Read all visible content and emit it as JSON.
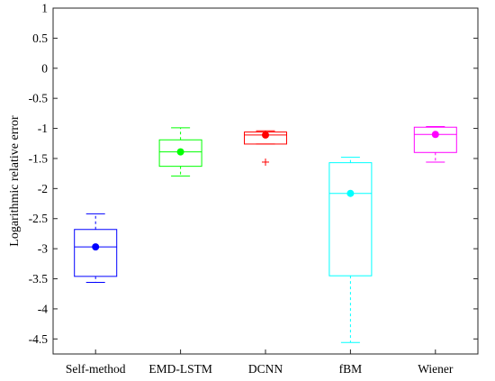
{
  "chart_data": {
    "type": "boxplot",
    "ylabel": "Logarithmic relative error",
    "xlabel": "",
    "ylim": [
      -4.75,
      1
    ],
    "yticks": [
      1,
      0.5,
      0,
      -0.5,
      -1,
      -1.5,
      -2,
      -2.5,
      -3,
      -3.5,
      -4,
      -4.5
    ],
    "ytick_labels": [
      "1",
      "0.5",
      "0",
      "-0.5",
      "-1",
      "-1.5",
      "-2",
      "-2.5",
      "-3",
      "-3.5",
      "-4",
      "-4.5"
    ],
    "grid": false,
    "categories": [
      "Self-method",
      "EMD-LSTM",
      "DCNN",
      "fBM",
      "Wiener"
    ],
    "series": [
      {
        "category": "Self-method",
        "color": "#0000ff",
        "whisker_low": -3.56,
        "q1": -3.46,
        "median": -2.97,
        "q3": -2.68,
        "whisker_high": -2.42,
        "mean": -2.97,
        "outliers": []
      },
      {
        "category": "EMD-LSTM",
        "color": "#00ff00",
        "whisker_low": -1.79,
        "q1": -1.63,
        "median": -1.39,
        "q3": -1.19,
        "whisker_high": -0.99,
        "mean": -1.39,
        "outliers": []
      },
      {
        "category": "DCNN",
        "color": "#ff0000",
        "whisker_low": -1.26,
        "q1": -1.26,
        "median": -1.11,
        "q3": -1.06,
        "whisker_high": -1.04,
        "mean": -1.11,
        "outliers": [
          -1.56
        ]
      },
      {
        "category": "fBM",
        "color": "#00ffff",
        "whisker_low": -4.56,
        "q1": -3.45,
        "median": -2.08,
        "q3": -1.57,
        "whisker_high": -1.48,
        "mean": -2.08,
        "outliers": []
      },
      {
        "category": "Wiener",
        "color": "#ff00ff",
        "whisker_low": -1.56,
        "q1": -1.4,
        "median": -1.1,
        "q3": -0.98,
        "whisker_high": -0.97,
        "mean": -1.1,
        "outliers": []
      }
    ]
  }
}
